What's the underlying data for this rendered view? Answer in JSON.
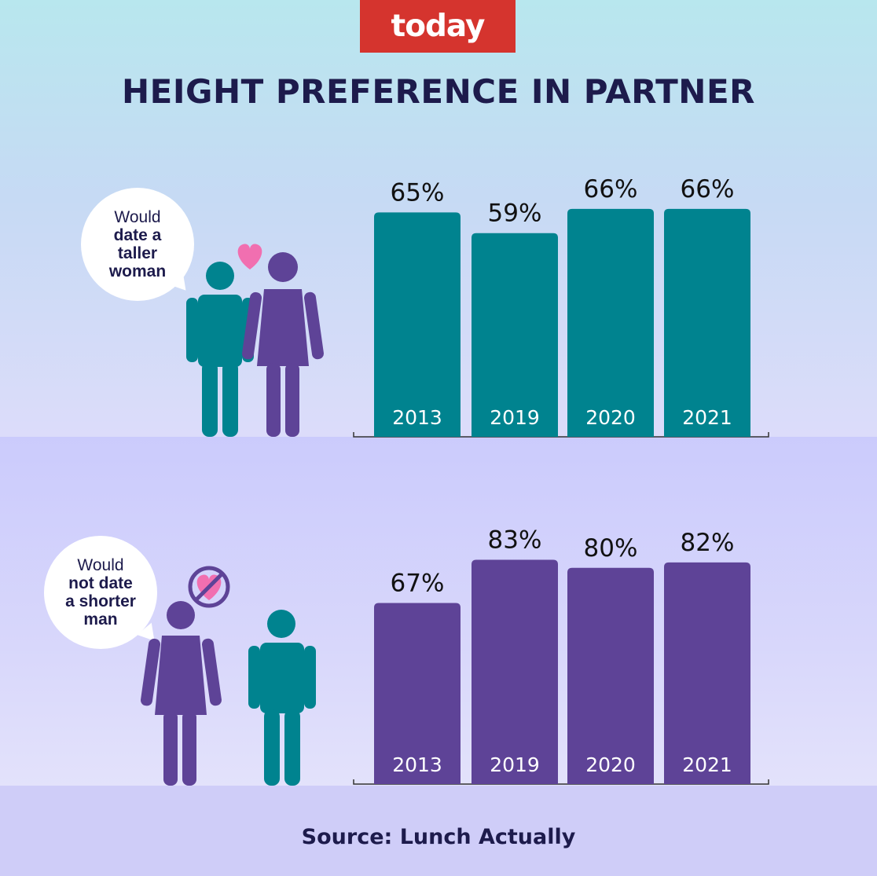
{
  "brand": {
    "logo_text": "today",
    "accent": "#d5342e"
  },
  "title": "HEIGHT PREFERENCE IN PARTNER",
  "source": "Source: Lunch Actually",
  "colors": {
    "teal": "#00838f",
    "purple": "#5e4397",
    "heart": "#f16fb0"
  },
  "chart_data": [
    {
      "type": "bar",
      "title": "",
      "caption_lines": [
        "Would",
        "date a",
        "taller",
        "woman"
      ],
      "categories": [
        "2013",
        "2019",
        "2020",
        "2021"
      ],
      "values": [
        65,
        59,
        66,
        66
      ],
      "value_labels": [
        "65%",
        "59%",
        "66%",
        "66%"
      ],
      "ylim": [
        0,
        100
      ],
      "xlabel": "",
      "ylabel": "",
      "color": "#00838f",
      "grid": false
    },
    {
      "type": "bar",
      "title": "",
      "caption_lines": [
        "Would",
        "not date",
        "a shorter",
        "man"
      ],
      "categories": [
        "2013",
        "2019",
        "2020",
        "2021"
      ],
      "values": [
        67,
        83,
        80,
        82
      ],
      "value_labels": [
        "67%",
        "83%",
        "80%",
        "82%"
      ],
      "ylim": [
        0,
        100
      ],
      "xlabel": "",
      "ylabel": "",
      "color": "#5e4397",
      "grid": false
    }
  ]
}
